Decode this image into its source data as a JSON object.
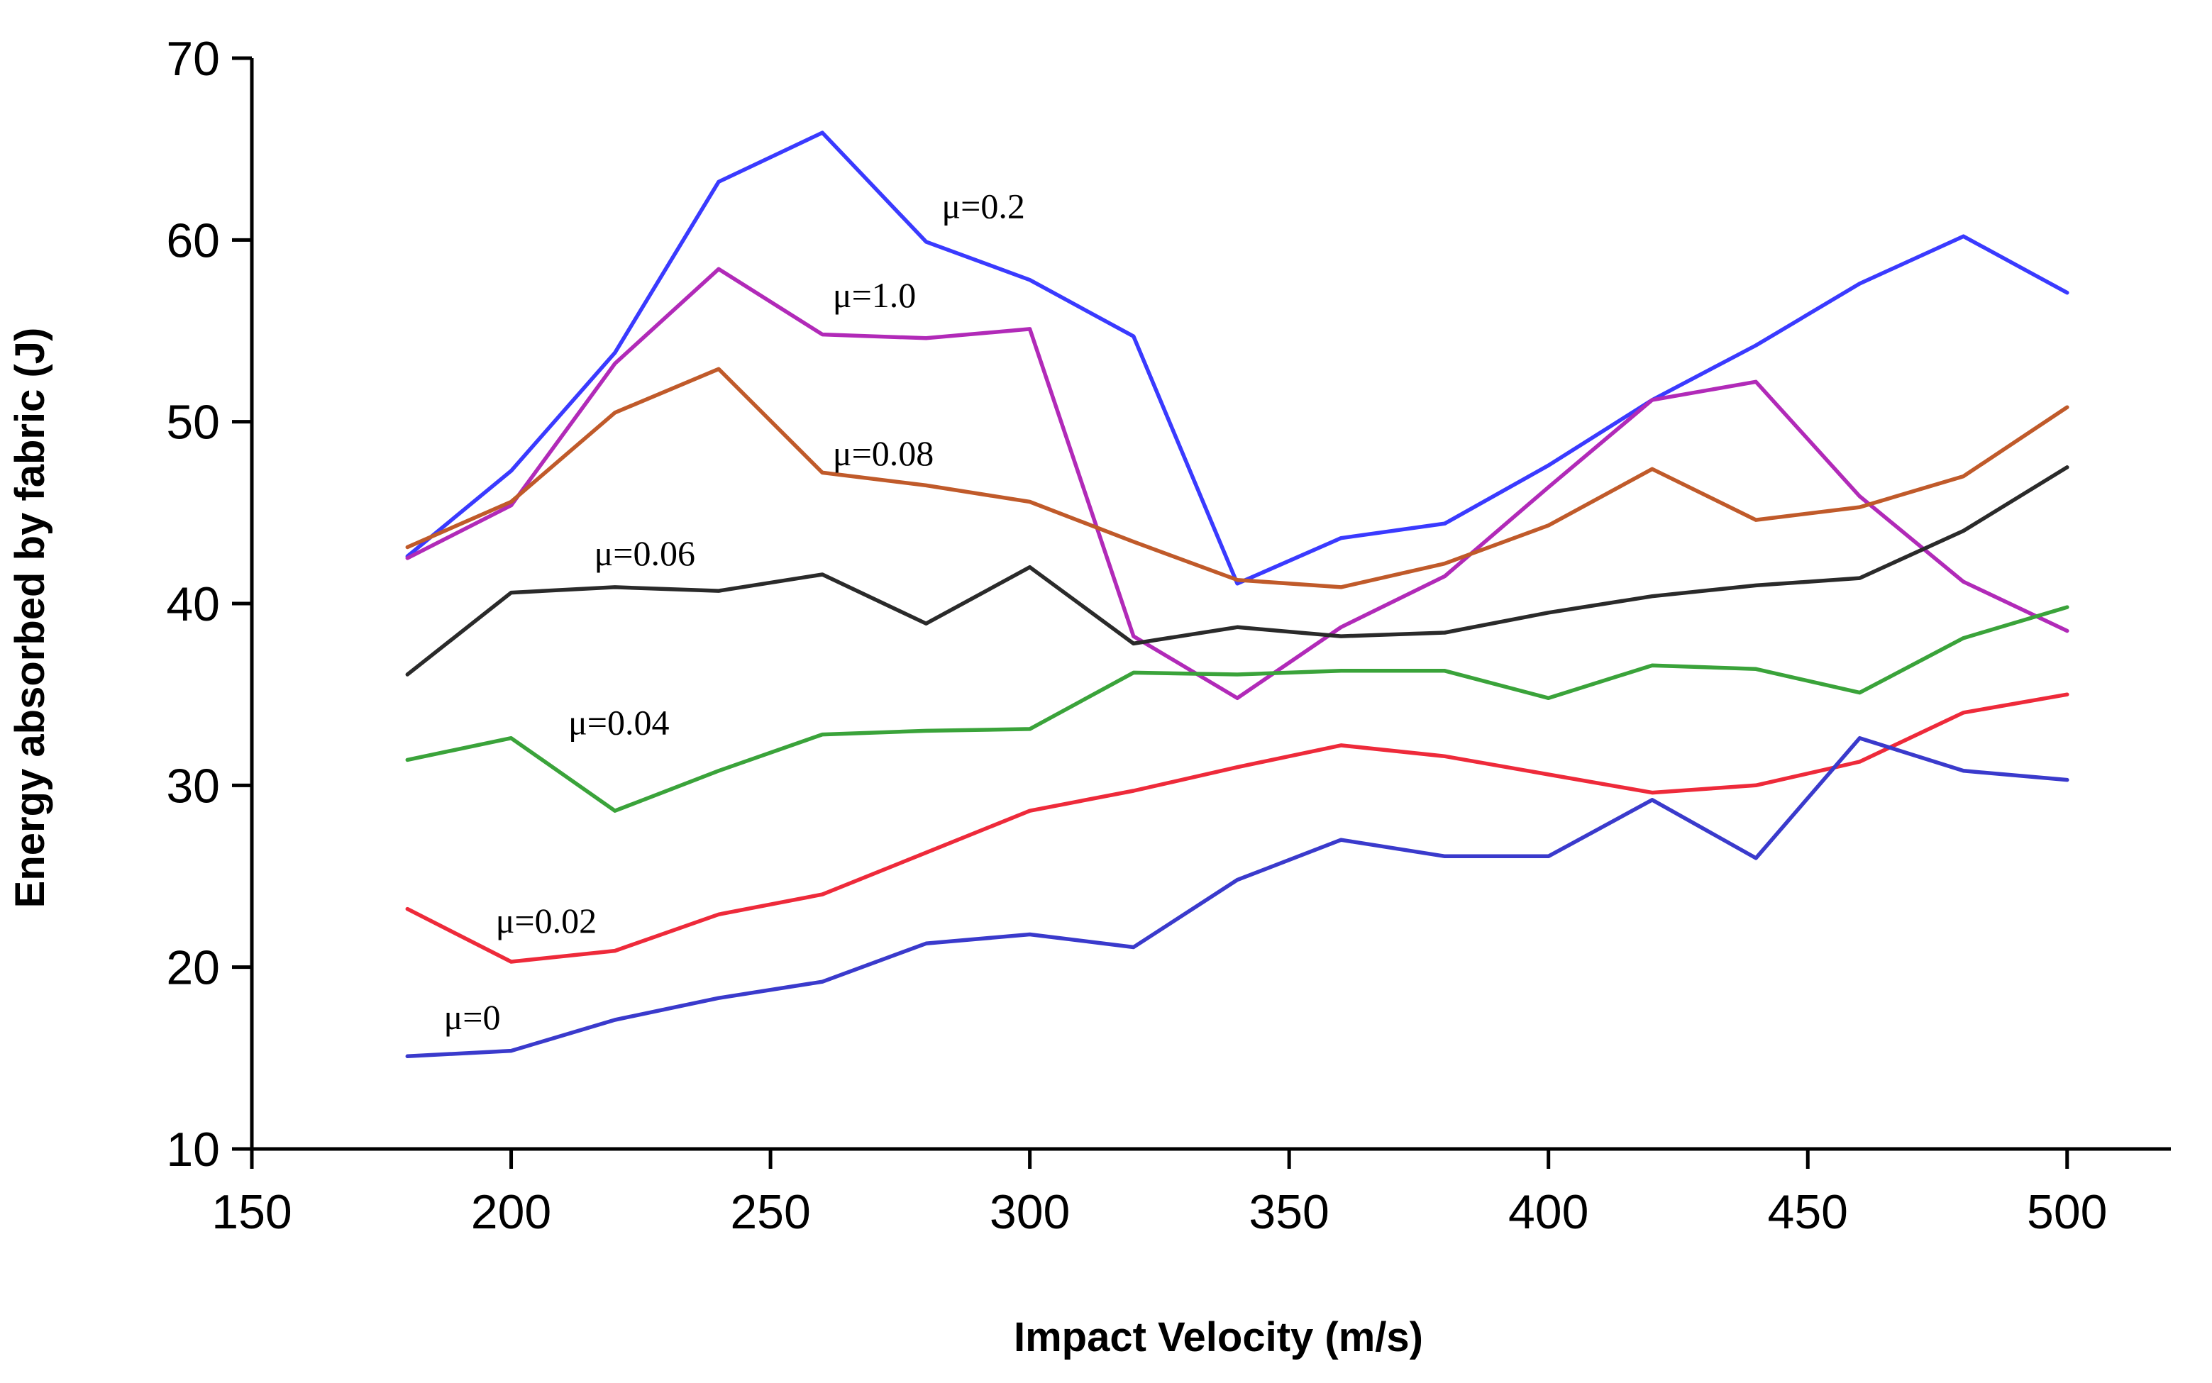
{
  "chart_data": {
    "type": "line",
    "title": "",
    "xlabel": "Impact Velocity (m/s)",
    "ylabel": "Energy absorbed by fabric (J)",
    "xlim": [
      150,
      520
    ],
    "ylim": [
      10,
      70
    ],
    "xticks": [
      150,
      200,
      250,
      300,
      350,
      400,
      450,
      500
    ],
    "yticks": [
      10,
      20,
      30,
      40,
      50,
      60,
      70
    ],
    "grid": false,
    "x": [
      180,
      200,
      220,
      240,
      260,
      280,
      300,
      320,
      340,
      360,
      380,
      400,
      420,
      440,
      460,
      480,
      500
    ],
    "series": [
      {
        "name": "μ=0.2",
        "color": "#3a3aff",
        "values": [
          42.6,
          47.3,
          53.8,
          63.2,
          65.9,
          59.9,
          57.8,
          54.7,
          41.1,
          43.6,
          44.4,
          47.6,
          51.2,
          54.2,
          57.6,
          60.2,
          57.1
        ],
        "label_at": [
          283,
          61.2
        ]
      },
      {
        "name": "μ=1.0",
        "color": "#b12ab8",
        "values": [
          42.5,
          45.4,
          53.2,
          58.4,
          54.8,
          54.6,
          55.1,
          38.2,
          34.8,
          38.7,
          41.5,
          46.4,
          51.2,
          52.2,
          45.9,
          41.2,
          38.5
        ],
        "label_at": [
          262,
          56.3
        ]
      },
      {
        "name": "μ=0.08",
        "color": "#c05a2a",
        "values": [
          43.1,
          45.6,
          50.5,
          52.9,
          47.2,
          46.5,
          45.6,
          43.4,
          41.3,
          40.9,
          42.2,
          44.3,
          47.4,
          44.6,
          45.3,
          47.0,
          50.8
        ],
        "label_at": [
          262,
          47.6
        ]
      },
      {
        "name": "μ=0.06",
        "color": "#2a2a2a",
        "values": [
          36.1,
          40.6,
          40.9,
          40.7,
          41.6,
          38.9,
          42.0,
          37.8,
          38.7,
          38.2,
          38.4,
          39.5,
          40.4,
          41.0,
          41.4,
          44.0,
          47.5
        ],
        "label_at": [
          216,
          42.1
        ]
      },
      {
        "name": "μ=0.04",
        "color": "#3aa33a",
        "values": [
          31.4,
          32.6,
          28.6,
          30.8,
          32.8,
          33.0,
          33.1,
          36.2,
          36.1,
          36.3,
          36.3,
          34.8,
          36.6,
          36.4,
          35.1,
          38.1,
          39.8
        ],
        "label_at": [
          211,
          32.8
        ]
      },
      {
        "name": "μ=0.02",
        "color": "#ee2a3a",
        "values": [
          23.2,
          20.3,
          20.9,
          22.9,
          24.0,
          26.3,
          28.6,
          29.7,
          31.0,
          32.2,
          31.6,
          30.6,
          29.6,
          30.0,
          31.3,
          34.0,
          35.0
        ],
        "label_at": [
          197,
          21.9
        ]
      },
      {
        "name": "μ=0",
        "color": "#3a3acc",
        "values": [
          15.1,
          15.4,
          17.1,
          18.3,
          19.2,
          21.3,
          21.8,
          21.1,
          24.8,
          27.0,
          26.1,
          26.1,
          29.2,
          26.0,
          32.6,
          30.8,
          30.3
        ],
        "label_at": [
          187,
          16.6
        ]
      }
    ]
  }
}
